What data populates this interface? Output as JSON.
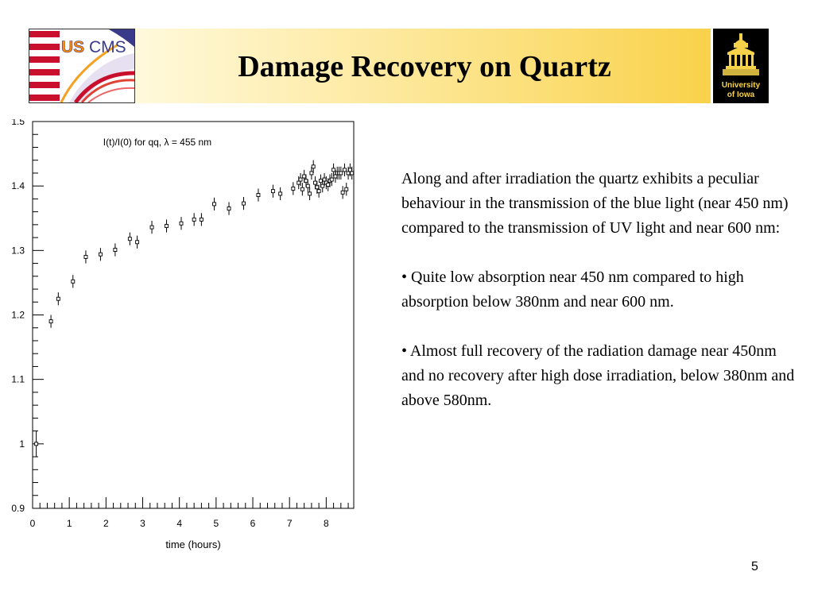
{
  "slide": {
    "title": "Damage Recovery on Quartz",
    "page_number": "5",
    "logos": {
      "left": {
        "text": "US CMS"
      },
      "right": {
        "text_line1": "University",
        "text_line2": "of Iowa"
      }
    },
    "paragraphs": [
      "Along and after irradiation the quartz exhibits a peculiar behaviour in the transmission of the blue light (near 450 nm) compared to the transmission of UV light and near 600 nm:",
      "• Quite low absorption near 450 nm compared to high absorption below 380nm and near 600 nm.",
      "• Almost full recovery of the radiation damage near 450nm and no recovery after high dose irradiation, below 380nm and above 580nm."
    ]
  },
  "chart_data": {
    "type": "scatter",
    "title": "I(t)/I(0) for qq, λ = 455 nm",
    "xlabel": "time (hours)",
    "ylabel": "",
    "xlim": [
      0,
      8.75
    ],
    "ylim": [
      0.9,
      1.5
    ],
    "xticks": [
      "0",
      "1",
      "2",
      "3",
      "4",
      "5",
      "6",
      "7",
      "8"
    ],
    "yticks": [
      "0.9",
      "1",
      "1.1",
      "1.2",
      "1.3",
      "1.4",
      "1.5"
    ],
    "grid": false,
    "series": [
      {
        "marker": "open-square-with-error-bars",
        "x": [
          0.1,
          0.5,
          0.7,
          1.1,
          1.45,
          1.85,
          2.25,
          2.65,
          2.85,
          3.25,
          3.65,
          4.05,
          4.4,
          4.6,
          4.95,
          5.35,
          5.75,
          6.15,
          6.55,
          6.75,
          7.1,
          7.25,
          7.3,
          7.35,
          7.4,
          7.45,
          7.5,
          7.55,
          7.6,
          7.65,
          7.7,
          7.75,
          7.8,
          7.85,
          7.9,
          7.95,
          8.0,
          8.05,
          8.1,
          8.15,
          8.2,
          8.25,
          8.3,
          8.35,
          8.4,
          8.45,
          8.5,
          8.55,
          8.6,
          8.65,
          8.7
        ],
        "y": [
          1.0,
          1.19,
          1.225,
          1.252,
          1.29,
          1.294,
          1.301,
          1.318,
          1.313,
          1.336,
          1.338,
          1.342,
          1.348,
          1.348,
          1.372,
          1.365,
          1.373,
          1.386,
          1.392,
          1.388,
          1.396,
          1.405,
          1.41,
          1.395,
          1.415,
          1.408,
          1.4,
          1.388,
          1.42,
          1.43,
          1.405,
          1.398,
          1.392,
          1.408,
          1.4,
          1.41,
          1.405,
          1.402,
          1.408,
          1.41,
          1.425,
          1.415,
          1.42,
          1.42,
          1.42,
          1.39,
          1.425,
          1.395,
          1.42,
          1.425,
          1.42
        ],
        "yerr": [
          0.02,
          0.01,
          0.01,
          0.01,
          0.01,
          0.01,
          0.01,
          0.01,
          0.01,
          0.01,
          0.01,
          0.01,
          0.01,
          0.01,
          0.01,
          0.01,
          0.01,
          0.01,
          0.01,
          0.01,
          0.01,
          0.01,
          0.01,
          0.01,
          0.01,
          0.01,
          0.01,
          0.01,
          0.01,
          0.01,
          0.01,
          0.01,
          0.01,
          0.01,
          0.01,
          0.01,
          0.01,
          0.01,
          0.01,
          0.01,
          0.01,
          0.01,
          0.01,
          0.01,
          0.01,
          0.01,
          0.01,
          0.01,
          0.01,
          0.01,
          0.01
        ]
      }
    ]
  }
}
